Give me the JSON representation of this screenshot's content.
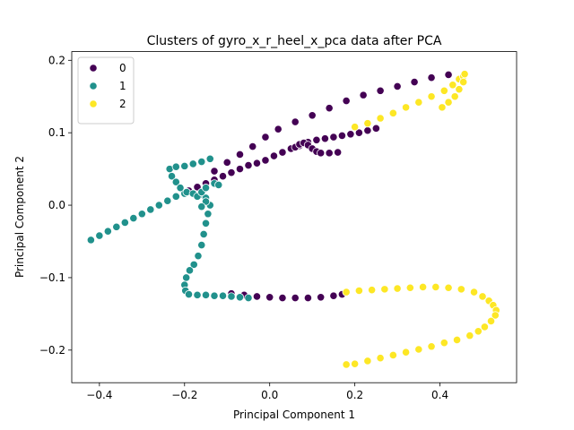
{
  "chart_data": {
    "type": "scatter",
    "title": "Clusters of gyro_x_r_heel_x_pca data after PCA",
    "xlabel": "Principal Component 1",
    "ylabel": "Principal Component 2",
    "xlim": [
      -0.465,
      0.58
    ],
    "ylim": [
      -0.245,
      0.212
    ],
    "xticks": [
      -0.4,
      -0.2,
      0.0,
      0.2,
      0.4
    ],
    "xtick_labels": [
      "−0.4",
      "−0.2",
      "0.0",
      "0.2",
      "0.4"
    ],
    "yticks": [
      -0.2,
      -0.1,
      0.0,
      0.1,
      0.2
    ],
    "ytick_labels": [
      "−0.2",
      "−0.1",
      "0.0",
      "0.1",
      "0.2"
    ],
    "grid": false,
    "legend_position": "top-left",
    "series": [
      {
        "name": "0",
        "color": "#440154",
        "points": [
          [
            -0.19,
            0.02
          ],
          [
            -0.17,
            0.025
          ],
          [
            -0.15,
            0.03
          ],
          [
            -0.13,
            0.035
          ],
          [
            -0.11,
            0.04
          ],
          [
            -0.09,
            0.045
          ],
          [
            -0.07,
            0.05
          ],
          [
            -0.05,
            0.055
          ],
          [
            -0.03,
            0.058
          ],
          [
            -0.01,
            0.062
          ],
          [
            0.01,
            0.068
          ],
          [
            0.03,
            0.073
          ],
          [
            0.05,
            0.078
          ],
          [
            0.07,
            0.082
          ],
          [
            0.09,
            0.087
          ],
          [
            0.11,
            0.09
          ],
          [
            0.13,
            0.092
          ],
          [
            0.15,
            0.094
          ],
          [
            0.17,
            0.096
          ],
          [
            0.19,
            0.098
          ],
          [
            0.21,
            0.1
          ],
          [
            0.23,
            0.103
          ],
          [
            0.25,
            0.106
          ],
          [
            -0.13,
            0.047
          ],
          [
            -0.1,
            0.059
          ],
          [
            -0.07,
            0.07
          ],
          [
            -0.04,
            0.081
          ],
          [
            -0.01,
            0.094
          ],
          [
            0.02,
            0.105
          ],
          [
            0.06,
            0.115
          ],
          [
            0.1,
            0.124
          ],
          [
            0.14,
            0.134
          ],
          [
            0.18,
            0.144
          ],
          [
            0.22,
            0.152
          ],
          [
            0.26,
            0.158
          ],
          [
            0.3,
            0.164
          ],
          [
            0.34,
            0.17
          ],
          [
            0.38,
            0.176
          ],
          [
            0.42,
            0.18
          ],
          [
            0.06,
            0.08
          ],
          [
            0.07,
            0.084
          ],
          [
            0.08,
            0.086
          ],
          [
            0.09,
            0.083
          ],
          [
            0.1,
            0.078
          ],
          [
            0.11,
            0.074
          ],
          [
            0.12,
            0.072
          ],
          [
            0.14,
            0.072
          ],
          [
            0.16,
            0.073
          ],
          [
            -0.09,
            -0.122
          ],
          [
            -0.06,
            -0.124
          ],
          [
            -0.03,
            -0.126
          ],
          [
            0.0,
            -0.127
          ],
          [
            0.03,
            -0.128
          ],
          [
            0.06,
            -0.128
          ],
          [
            0.09,
            -0.128
          ],
          [
            0.12,
            -0.127
          ],
          [
            0.15,
            -0.125
          ],
          [
            0.17,
            -0.123
          ]
        ]
      },
      {
        "name": "1",
        "color": "#21918c",
        "points": [
          [
            -0.42,
            -0.048
          ],
          [
            -0.4,
            -0.042
          ],
          [
            -0.38,
            -0.036
          ],
          [
            -0.36,
            -0.03
          ],
          [
            -0.34,
            -0.024
          ],
          [
            -0.32,
            -0.018
          ],
          [
            -0.3,
            -0.012
          ],
          [
            -0.28,
            -0.006
          ],
          [
            -0.26,
            0.0
          ],
          [
            -0.24,
            0.006
          ],
          [
            -0.22,
            0.012
          ],
          [
            -0.2,
            0.016
          ],
          [
            -0.235,
            0.05
          ],
          [
            -0.22,
            0.053
          ],
          [
            -0.2,
            0.054
          ],
          [
            -0.18,
            0.057
          ],
          [
            -0.16,
            0.06
          ],
          [
            -0.14,
            0.064
          ],
          [
            -0.23,
            0.04
          ],
          [
            -0.22,
            0.032
          ],
          [
            -0.21,
            0.024
          ],
          [
            -0.195,
            0.018
          ],
          [
            -0.18,
            0.016
          ],
          [
            -0.165,
            0.014
          ],
          [
            -0.15,
            0.01
          ],
          [
            -0.14,
            0.0
          ],
          [
            -0.145,
            -0.012
          ],
          [
            -0.15,
            -0.025
          ],
          [
            -0.155,
            -0.04
          ],
          [
            -0.16,
            -0.055
          ],
          [
            -0.168,
            -0.07
          ],
          [
            -0.178,
            -0.082
          ],
          [
            -0.188,
            -0.09
          ],
          [
            -0.196,
            -0.1
          ],
          [
            -0.2,
            -0.11
          ],
          [
            -0.198,
            -0.118
          ],
          [
            -0.19,
            -0.123
          ],
          [
            -0.17,
            -0.124
          ],
          [
            -0.15,
            -0.124
          ],
          [
            -0.13,
            -0.125
          ],
          [
            -0.11,
            -0.125
          ],
          [
            -0.09,
            -0.126
          ],
          [
            -0.07,
            -0.127
          ],
          [
            -0.05,
            -0.128
          ],
          [
            -0.17,
            0.012
          ],
          [
            -0.16,
            0.018
          ],
          [
            -0.15,
            0.024
          ],
          [
            -0.13,
            0.03
          ],
          [
            -0.12,
            0.028
          ],
          [
            -0.15,
            0.005
          ],
          [
            -0.16,
            -0.002
          ]
        ]
      },
      {
        "name": "2",
        "color": "#fde725",
        "points": [
          [
            0.2,
            0.108
          ],
          [
            0.23,
            0.113
          ],
          [
            0.26,
            0.12
          ],
          [
            0.29,
            0.127
          ],
          [
            0.32,
            0.135
          ],
          [
            0.35,
            0.142
          ],
          [
            0.38,
            0.15
          ],
          [
            0.41,
            0.158
          ],
          [
            0.43,
            0.166
          ],
          [
            0.445,
            0.174
          ],
          [
            0.455,
            0.178
          ],
          [
            0.458,
            0.181
          ],
          [
            0.455,
            0.17
          ],
          [
            0.445,
            0.16
          ],
          [
            0.435,
            0.15
          ],
          [
            0.42,
            0.142
          ],
          [
            0.405,
            0.135
          ],
          [
            0.18,
            -0.12
          ],
          [
            0.21,
            -0.118
          ],
          [
            0.24,
            -0.117
          ],
          [
            0.27,
            -0.116
          ],
          [
            0.3,
            -0.115
          ],
          [
            0.33,
            -0.114
          ],
          [
            0.36,
            -0.113
          ],
          [
            0.39,
            -0.113
          ],
          [
            0.42,
            -0.114
          ],
          [
            0.45,
            -0.116
          ],
          [
            0.48,
            -0.12
          ],
          [
            0.5,
            -0.126
          ],
          [
            0.515,
            -0.132
          ],
          [
            0.525,
            -0.138
          ],
          [
            0.532,
            -0.145
          ],
          [
            0.53,
            -0.152
          ],
          [
            0.52,
            -0.16
          ],
          [
            0.505,
            -0.168
          ],
          [
            0.49,
            -0.174
          ],
          [
            0.47,
            -0.18
          ],
          [
            0.44,
            -0.186
          ],
          [
            0.41,
            -0.19
          ],
          [
            0.38,
            -0.195
          ],
          [
            0.35,
            -0.199
          ],
          [
            0.32,
            -0.203
          ],
          [
            0.29,
            -0.207
          ],
          [
            0.26,
            -0.211
          ],
          [
            0.23,
            -0.215
          ],
          [
            0.2,
            -0.219
          ],
          [
            0.18,
            -0.22
          ]
        ]
      }
    ]
  }
}
